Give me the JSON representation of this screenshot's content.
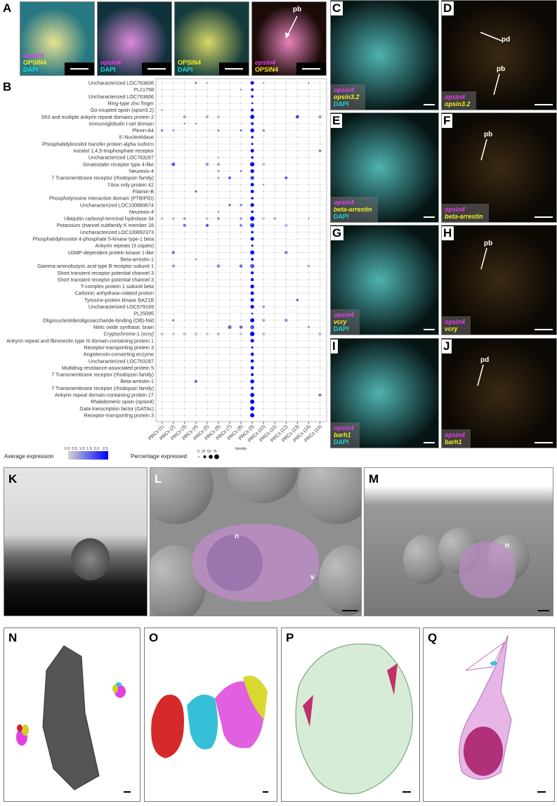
{
  "panel_labels": {
    "A": "A",
    "B": "B",
    "C": "C",
    "D": "D",
    "E": "E",
    "F": "F",
    "G": "G",
    "H": "H",
    "I": "I",
    "J": "J",
    "K": "K",
    "L": "L",
    "M": "M",
    "N": "N",
    "O": "O",
    "P": "P",
    "Q": "Q"
  },
  "panel_a": [
    {
      "lines": [
        [
          "opsin4",
          "m"
        ],
        [
          "OPSIN4",
          "y"
        ],
        [
          "DAPI",
          "c"
        ]
      ]
    },
    {
      "lines": [
        [
          "opsin4",
          "m"
        ],
        [
          "DAPI",
          "c"
        ]
      ]
    },
    {
      "lines": [
        [
          "OPSIN4",
          "y"
        ],
        [
          "DAPI",
          "c"
        ]
      ]
    },
    {
      "lines": [
        [
          "opsin4",
          "m"
        ],
        [
          "OPSIN4",
          "y"
        ]
      ],
      "arrow": "pb"
    }
  ],
  "right_panels": {
    "C": {
      "lines": [
        [
          "opsin4",
          "m"
        ],
        [
          "opsin3.2",
          "yi"
        ],
        [
          "DAPI",
          "c"
        ]
      ]
    },
    "D": {
      "lines": [
        [
          "opsin4",
          "m"
        ],
        [
          "opsin3.2",
          "yi"
        ]
      ],
      "arrows": [
        "pd",
        "pb"
      ]
    },
    "E": {
      "lines": [
        [
          "opsin4",
          "m"
        ],
        [
          "beta-arrestin",
          "yi"
        ],
        [
          "DAPI",
          "c"
        ]
      ]
    },
    "F": {
      "lines": [
        [
          "opsin4",
          "m"
        ],
        [
          "beta-arrestin",
          "yi"
        ]
      ],
      "arrows": [
        "pb"
      ]
    },
    "G": {
      "lines": [
        [
          "opsin4",
          "m"
        ],
        [
          "vcry",
          "yi"
        ],
        [
          "DAPI",
          "c"
        ]
      ]
    },
    "H": {
      "lines": [
        [
          "opsin4",
          "m"
        ],
        [
          "vcry",
          "yi"
        ]
      ],
      "arrows": [
        "pb"
      ]
    },
    "I": {
      "lines": [
        [
          "opsin4",
          "m"
        ],
        [
          "barh1",
          "yi"
        ],
        [
          "DAPI",
          "c"
        ]
      ]
    },
    "J": {
      "lines": [
        [
          "opsin4",
          "m"
        ],
        [
          "barh1",
          "yi"
        ]
      ],
      "arrows": [
        "pd"
      ]
    }
  },
  "em_annotations": {
    "L": [
      "n",
      "v"
    ],
    "M": [
      "n"
    ]
  },
  "chart_data": {
    "type": "dotplot",
    "xlabel": "Identity",
    "ylabel": "",
    "categories": [
      "PRCs (1)",
      "PRCs (2)",
      "PRCs (3)",
      "PRCs (4)",
      "PRCs (5)",
      "PRCs (6)",
      "PRCs (7)",
      "PRCs (8)",
      "PRCs (9)",
      "PRCs (10)",
      "PRCs (11)",
      "PRCs (12)",
      "PRCs (13)",
      "PRCs (14)",
      "PRCs (15)"
    ],
    "legend": {
      "color_title": "Average expression",
      "color_ticks": [
        "0.0",
        "0.5",
        "1.0",
        "1.5",
        "2.0",
        "2.5"
      ],
      "color_range": [
        0,
        2.5
      ],
      "color_low": "#d3d3d3",
      "color_high": "#0000ff",
      "size_title": "Percentage expressed",
      "size_ticks": [
        "0",
        "25",
        "50",
        "75"
      ]
    },
    "default_dot": {
      "pct": 5,
      "avg": 0.2
    },
    "genes": [
      {
        "name": "Uncharacterized LOC763606",
        "dots": {
          "4": [
            15,
            1.2
          ],
          "5": [
            10,
            0.8
          ],
          "9": [
            40,
            2.5
          ],
          "10": [
            10,
            0.8
          ],
          "14": [
            10,
            0.8
          ]
        }
      },
      {
        "name": "PL21758",
        "dots": {
          "8": [
            8,
            1.2
          ],
          "9": [
            25,
            2.5
          ]
        }
      },
      {
        "name": "Uncharacterized LOC763606",
        "dots": {
          "9": [
            20,
            2.5
          ]
        }
      },
      {
        "name": "Ring-type zinc finger",
        "dots": {
          "9": [
            10,
            2.5
          ]
        }
      },
      {
        "name": "Go-coupled opsin (opsin3.2)",
        "dots": {
          "1": [
            8,
            1.0
          ],
          "9": [
            30,
            2.5
          ]
        }
      },
      {
        "name": "Sh3 and multiple ankyrin repeat domains protein 2",
        "dots": {
          "3": [
            25,
            0.7
          ],
          "5": [
            25,
            0.6
          ],
          "6": [
            25,
            0.3
          ],
          "9": [
            55,
            2.5
          ],
          "13": [
            40,
            1.6
          ],
          "15": [
            35,
            0.6
          ]
        }
      },
      {
        "name": "Immunoglobulin I-set domain",
        "dots": {
          "3": [
            10,
            1.0
          ],
          "4": [
            10,
            1.0
          ],
          "9": [
            25,
            2.5
          ]
        }
      },
      {
        "name": "Plexin-A4",
        "dots": {
          "1": [
            20,
            1.0
          ],
          "2": [
            15,
            0.7
          ],
          "6": [
            15,
            1.0
          ],
          "8": [
            15,
            1.2
          ],
          "9": [
            50,
            2.5
          ],
          "10": [
            25,
            0.7
          ]
        }
      },
      {
        "name": "5'-Nucleotidase",
        "dots": {
          "9": [
            20,
            2.5
          ]
        }
      },
      {
        "name": "Phosphatidylinositol transfer protein alpha isoform",
        "dots": {
          "9": [
            15,
            2.5
          ]
        }
      },
      {
        "name": "Inositol 1,4,5-trisphosphate receptor",
        "dots": {
          "9": [
            40,
            2.5
          ],
          "15": [
            20,
            1.2
          ]
        }
      },
      {
        "name": "Uncharacterized LOC763287",
        "dots": {
          "6": [
            8,
            1.0
          ],
          "9": [
            20,
            2.5
          ]
        }
      },
      {
        "name": "Smatostatin receptor type 4-like",
        "dots": {
          "2": [
            40,
            1.5
          ],
          "5": [
            30,
            0.8
          ],
          "6": [
            25,
            0.6
          ],
          "9": [
            60,
            2.5
          ],
          "10": [
            25,
            0.3
          ]
        }
      },
      {
        "name": "Neurexin-4",
        "dots": {
          "6": [
            15,
            0.8
          ],
          "8": [
            15,
            1.0
          ],
          "9": [
            45,
            2.5
          ]
        }
      },
      {
        "name": "7 Transmembrane receptor (rhodopsin family)",
        "dots": {
          "6": [
            15,
            0.7
          ],
          "7": [
            25,
            1.4
          ],
          "9": [
            45,
            1.8
          ],
          "12": [
            25,
            1.5
          ]
        }
      },
      {
        "name": "f-box only protein 42",
        "dots": {
          "9": [
            40,
            2.5
          ],
          "10": [
            10,
            1.0
          ]
        }
      },
      {
        "name": "Filamin-B",
        "dots": {
          "4": [
            15,
            1.4
          ],
          "9": [
            35,
            2.5
          ]
        }
      },
      {
        "name": "Phosphotyrosine interaction domain (PTB/PID)",
        "dots": {
          "9": [
            20,
            2.5
          ]
        }
      },
      {
        "name": "Uncharacterized LOC100889674",
        "dots": {
          "7": [
            20,
            1.2
          ],
          "8": [
            20,
            1.0
          ],
          "9": [
            45,
            2.5
          ]
        }
      },
      {
        "name": "Neurexin-4",
        "dots": {
          "6": [
            8,
            1.2
          ],
          "9": [
            20,
            2.5
          ]
        }
      },
      {
        "name": "Ubiquitin carboxyl-terminal hydrolase 34",
        "dots": {
          "1": [
            20,
            0.3
          ],
          "2": [
            20,
            0.5
          ],
          "3": [
            25,
            0.6
          ],
          "5": [
            20,
            0.4
          ],
          "6": [
            25,
            0.7
          ],
          "8": [
            25,
            0.6
          ],
          "9": [
            65,
            2.5
          ],
          "10": [
            20,
            0.3
          ],
          "11": [
            25,
            0.5
          ],
          "14": [
            15,
            0.4
          ]
        }
      },
      {
        "name": "Potassium channel subfamily K member 18",
        "dots": {
          "3": [
            30,
            1.2
          ],
          "5": [
            30,
            1.5
          ],
          "8": [
            25,
            1.0
          ],
          "9": [
            60,
            2.0
          ],
          "12": [
            30,
            0.4
          ]
        }
      },
      {
        "name": "Uncharacterized LOC100892373",
        "dots": {
          "9": [
            20,
            2.5
          ]
        }
      },
      {
        "name": "Phosphatidylinositol 4-phosphate 5-kinase type-1 beta",
        "dots": {
          "9": [
            40,
            2.5
          ]
        }
      },
      {
        "name": "Ankyrin repeats (3 copies)",
        "dots": {
          "9": [
            15,
            2.5
          ]
        }
      },
      {
        "name": "cGMP-dependent protein kinase 1-like",
        "dots": {
          "2": [
            30,
            1.2
          ],
          "9": [
            55,
            2.5
          ],
          "12": [
            35,
            1.0
          ]
        }
      },
      {
        "name": "Beta-arrestin-1",
        "dots": {
          "4": [
            10,
            1.2
          ],
          "9": [
            25,
            2.5
          ]
        }
      },
      {
        "name": "Gamma-aminobutyric acid type B receptor subunit 1",
        "dots": {
          "2": [
            25,
            0.8
          ],
          "6": [
            35,
            0.9
          ],
          "8": [
            35,
            1.2
          ],
          "9": [
            60,
            1.5
          ],
          "14": [
            25,
            0.4
          ]
        }
      },
      {
        "name": "Short transient receptor potential channel 3",
        "dots": {
          "9": [
            30,
            2.5
          ]
        }
      },
      {
        "name": "Short transient receptor potential channel 3",
        "dots": {
          "9": [
            30,
            2.5
          ]
        }
      },
      {
        "name": "T-complex protein 1 subunit beta",
        "dots": {
          "9": [
            45,
            2.5
          ]
        }
      },
      {
        "name": "Carbonic anhydrase-related protein",
        "dots": {
          "9": [
            40,
            2.5
          ]
        }
      },
      {
        "name": "Tyrosine-protein kinase BAZ1B",
        "dots": {
          "9": [
            40,
            2.5
          ],
          "13": [
            20,
            1.5
          ]
        }
      },
      {
        "name": "Uncharacterized LOC579169",
        "dots": {
          "9": [
            45,
            2.5
          ],
          "10": [
            25,
            0.6
          ]
        }
      },
      {
        "name": "PL25095",
        "dots": {
          "9": [
            10,
            2.5
          ]
        }
      },
      {
        "name": "Oligonucleotide/oligosaccharide-binding (OB)-fold",
        "dots": {
          "2": [
            20,
            0.9
          ],
          "9": [
            55,
            2.5
          ],
          "10": [
            25,
            0.6
          ],
          "12": [
            35,
            0.8
          ]
        }
      },
      {
        "name": "Nitric oxide synthase, brain",
        "dots": {
          "7": [
            45,
            1.2
          ],
          "8": [
            35,
            1.3
          ],
          "9": [
            55,
            1.5
          ],
          "14": [
            20,
            0.6
          ]
        }
      },
      {
        "name": "Cryptochrome-1 (vcry)",
        "dots": {
          "1": [
            30,
            0.2
          ],
          "2": [
            25,
            0.2
          ],
          "3": [
            35,
            0.2
          ],
          "4": [
            30,
            0.2
          ],
          "5": [
            25,
            0.2
          ],
          "6": [
            30,
            0.3
          ],
          "8": [
            25,
            0.2
          ],
          "9": [
            65,
            2.5
          ],
          "10": [
            30,
            0.2
          ],
          "15": [
            35,
            0.2
          ]
        }
      },
      {
        "name": "Ankyrin repeat and fibronectin type III domain-containing protein 1",
        "dots": {
          "9": [
            40,
            2.5
          ]
        }
      },
      {
        "name": "Receptor-transporting protein 3",
        "dots": {
          "9": [
            15,
            2.5
          ]
        }
      },
      {
        "name": "Angiotensin-converting enzyme",
        "dots": {
          "9": [
            35,
            2.5
          ]
        }
      },
      {
        "name": "Uncharacterized LOC763287",
        "dots": {
          "9": [
            35,
            2.5
          ]
        }
      },
      {
        "name": "Multidrug resistance-associated protein 5",
        "dots": {
          "9": [
            35,
            2.5
          ]
        }
      },
      {
        "name": "7 Transmembrane receptor (rhodopsin family)",
        "dots": {
          "9": [
            25,
            2.5
          ]
        }
      },
      {
        "name": "Beta-arrestin-1",
        "dots": {
          "4": [
            30,
            1.3
          ],
          "9": [
            50,
            2.5
          ]
        }
      },
      {
        "name": "7 Transmembrane receptor (rhodopsin family)",
        "dots": {
          "9": [
            25,
            2.5
          ]
        }
      },
      {
        "name": "Ankyrin repeat domain-containing protein 27",
        "dots": {
          "9": [
            55,
            2.5
          ],
          "15": [
            25,
            1.3
          ]
        }
      },
      {
        "name": "Rhabdomeric opsin (opsin4)",
        "dots": {
          "9": [
            60,
            2.5
          ]
        }
      },
      {
        "name": "Gata transcription factor (GATAc)",
        "dots": {
          "9": [
            60,
            2.5
          ]
        }
      },
      {
        "name": "Receptor-transporting protein 3",
        "dots": {
          "9": [
            60,
            2.5
          ]
        }
      }
    ]
  }
}
